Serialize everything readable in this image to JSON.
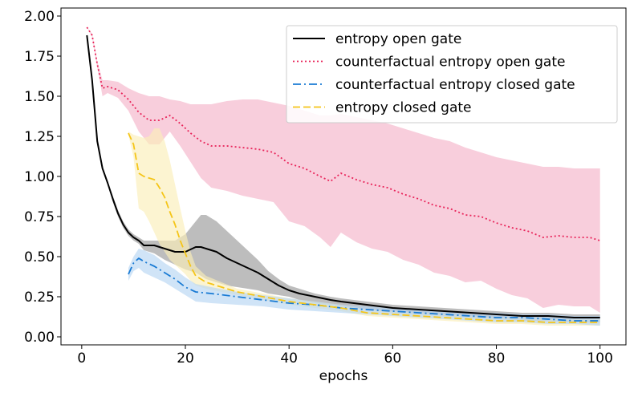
{
  "chart_data": {
    "type": "line",
    "title": "",
    "xlabel": "epochs",
    "ylabel": "",
    "xlim": [
      -4,
      105
    ],
    "ylim": [
      -0.05,
      2.05
    ],
    "xticks": [
      0,
      20,
      40,
      60,
      80,
      100
    ],
    "xtick_labels": [
      "0",
      "20",
      "40",
      "60",
      "80",
      "100"
    ],
    "yticks": [
      0.0,
      0.25,
      0.5,
      0.75,
      1.0,
      1.25,
      1.5,
      1.75,
      2.0
    ],
    "ytick_labels": [
      "0.00",
      "0.25",
      "0.50",
      "0.75",
      "1.00",
      "1.25",
      "1.50",
      "1.75",
      "2.00"
    ],
    "grid": false,
    "legend_position": "top-right",
    "series": [
      {
        "name": "entropy open gate",
        "color": "#000000",
        "style": "solid",
        "band_color": "#999999",
        "x": [
          1,
          2,
          3,
          4,
          5,
          6,
          7,
          8,
          9,
          10,
          11,
          12,
          14,
          16,
          18,
          20,
          22,
          23,
          24,
          26,
          28,
          30,
          32,
          34,
          36,
          38,
          40,
          42,
          45,
          48,
          50,
          55,
          60,
          65,
          70,
          75,
          80,
          85,
          90,
          95,
          100
        ],
        "values": [
          1.88,
          1.6,
          1.22,
          1.05,
          0.96,
          0.86,
          0.77,
          0.7,
          0.65,
          0.62,
          0.6,
          0.57,
          0.57,
          0.55,
          0.53,
          0.53,
          0.56,
          0.56,
          0.55,
          0.53,
          0.49,
          0.46,
          0.43,
          0.4,
          0.36,
          0.32,
          0.29,
          0.27,
          0.25,
          0.23,
          0.22,
          0.2,
          0.18,
          0.17,
          0.16,
          0.15,
          0.14,
          0.13,
          0.13,
          0.12,
          0.12
        ],
        "upper": [
          1.88,
          1.6,
          1.23,
          1.06,
          0.97,
          0.88,
          0.79,
          0.72,
          0.67,
          0.64,
          0.62,
          0.6,
          0.6,
          0.6,
          0.6,
          0.64,
          0.72,
          0.76,
          0.76,
          0.72,
          0.66,
          0.6,
          0.54,
          0.48,
          0.41,
          0.36,
          0.32,
          0.3,
          0.27,
          0.25,
          0.24,
          0.22,
          0.2,
          0.19,
          0.18,
          0.17,
          0.16,
          0.15,
          0.15,
          0.14,
          0.14
        ],
        "lower": [
          1.88,
          1.6,
          1.21,
          1.04,
          0.95,
          0.84,
          0.75,
          0.68,
          0.63,
          0.6,
          0.58,
          0.54,
          0.52,
          0.48,
          0.45,
          0.42,
          0.4,
          0.38,
          0.36,
          0.34,
          0.32,
          0.31,
          0.3,
          0.29,
          0.27,
          0.26,
          0.25,
          0.23,
          0.21,
          0.2,
          0.19,
          0.17,
          0.15,
          0.14,
          0.13,
          0.12,
          0.11,
          0.1,
          0.1,
          0.09,
          0.09
        ]
      },
      {
        "name": "counterfactual entropy open gate",
        "color": "#e8245a",
        "style": "dotted",
        "band_color": "#f4b3c9",
        "x": [
          1,
          2,
          3,
          4,
          5,
          7,
          9,
          11,
          13,
          15,
          17,
          19,
          21,
          23,
          25,
          28,
          31,
          34,
          37,
          40,
          43,
          46,
          48,
          50,
          53,
          56,
          59,
          62,
          65,
          68,
          71,
          74,
          77,
          80,
          83,
          86,
          89,
          92,
          95,
          98,
          100
        ],
        "values": [
          1.93,
          1.88,
          1.7,
          1.55,
          1.56,
          1.54,
          1.48,
          1.4,
          1.35,
          1.35,
          1.38,
          1.33,
          1.27,
          1.22,
          1.19,
          1.19,
          1.18,
          1.17,
          1.15,
          1.08,
          1.05,
          1.0,
          0.97,
          1.02,
          0.98,
          0.95,
          0.93,
          0.89,
          0.86,
          0.82,
          0.8,
          0.76,
          0.75,
          0.71,
          0.68,
          0.66,
          0.62,
          0.63,
          0.62,
          0.62,
          0.6
        ],
        "upper": [
          1.93,
          1.89,
          1.72,
          1.6,
          1.6,
          1.59,
          1.55,
          1.52,
          1.5,
          1.5,
          1.48,
          1.47,
          1.45,
          1.45,
          1.45,
          1.47,
          1.48,
          1.48,
          1.46,
          1.44,
          1.41,
          1.38,
          1.38,
          1.39,
          1.37,
          1.35,
          1.33,
          1.3,
          1.27,
          1.24,
          1.22,
          1.18,
          1.15,
          1.12,
          1.1,
          1.08,
          1.06,
          1.06,
          1.05,
          1.05,
          1.05
        ],
        "lower": [
          1.93,
          1.87,
          1.68,
          1.5,
          1.52,
          1.49,
          1.41,
          1.28,
          1.2,
          1.2,
          1.28,
          1.19,
          1.09,
          0.99,
          0.93,
          0.91,
          0.88,
          0.86,
          0.84,
          0.72,
          0.69,
          0.62,
          0.56,
          0.65,
          0.59,
          0.55,
          0.53,
          0.48,
          0.45,
          0.4,
          0.38,
          0.34,
          0.35,
          0.3,
          0.26,
          0.24,
          0.18,
          0.2,
          0.19,
          0.19,
          0.15
        ]
      },
      {
        "name": "counterfactual entropy closed gate",
        "color": "#1a7bd4",
        "style": "dashdot",
        "band_color": "#b7d6f2",
        "x": [
          9,
          10,
          11,
          12,
          14,
          16,
          18,
          20,
          22,
          25,
          30,
          35,
          40,
          45,
          50,
          55,
          60,
          65,
          70,
          75,
          80,
          85,
          90,
          95,
          100
        ],
        "values": [
          0.39,
          0.46,
          0.49,
          0.47,
          0.44,
          0.4,
          0.36,
          0.31,
          0.28,
          0.27,
          0.25,
          0.23,
          0.21,
          0.2,
          0.18,
          0.17,
          0.16,
          0.15,
          0.14,
          0.13,
          0.12,
          0.12,
          0.11,
          0.1,
          0.1
        ],
        "upper": [
          0.43,
          0.5,
          0.55,
          0.54,
          0.51,
          0.46,
          0.42,
          0.37,
          0.33,
          0.31,
          0.28,
          0.26,
          0.24,
          0.22,
          0.2,
          0.19,
          0.18,
          0.17,
          0.16,
          0.15,
          0.15,
          0.14,
          0.14,
          0.13,
          0.13
        ],
        "lower": [
          0.35,
          0.41,
          0.43,
          0.4,
          0.37,
          0.34,
          0.3,
          0.26,
          0.22,
          0.21,
          0.2,
          0.19,
          0.17,
          0.16,
          0.15,
          0.14,
          0.13,
          0.12,
          0.11,
          0.1,
          0.09,
          0.09,
          0.08,
          0.08,
          0.07
        ]
      },
      {
        "name": "entropy closed gate",
        "color": "#f5c518",
        "style": "dashed",
        "band_color": "#faeeb8",
        "x": [
          9,
          10,
          11,
          12,
          13,
          14,
          15,
          16,
          17,
          18,
          19,
          20,
          21,
          22,
          24,
          27,
          30,
          35,
          40,
          45,
          50,
          55,
          60,
          65,
          70,
          75,
          80,
          85,
          90,
          95,
          100
        ],
        "values": [
          1.27,
          1.2,
          1.02,
          1.0,
          0.99,
          0.98,
          0.93,
          0.87,
          0.78,
          0.7,
          0.6,
          0.52,
          0.44,
          0.38,
          0.34,
          0.31,
          0.28,
          0.25,
          0.22,
          0.2,
          0.18,
          0.15,
          0.14,
          0.13,
          0.12,
          0.11,
          0.1,
          0.1,
          0.09,
          0.09,
          0.09
        ],
        "upper": [
          1.28,
          1.26,
          1.25,
          1.24,
          1.25,
          1.3,
          1.3,
          1.22,
          1.1,
          0.95,
          0.8,
          0.66,
          0.53,
          0.44,
          0.38,
          0.34,
          0.3,
          0.27,
          0.24,
          0.22,
          0.2,
          0.17,
          0.16,
          0.15,
          0.14,
          0.13,
          0.12,
          0.12,
          0.11,
          0.11,
          0.11
        ],
        "lower": [
          1.26,
          1.12,
          0.8,
          0.78,
          0.72,
          0.65,
          0.58,
          0.53,
          0.48,
          0.45,
          0.42,
          0.39,
          0.35,
          0.32,
          0.3,
          0.28,
          0.26,
          0.23,
          0.2,
          0.18,
          0.16,
          0.13,
          0.12,
          0.11,
          0.1,
          0.09,
          0.08,
          0.08,
          0.07,
          0.07,
          0.07
        ]
      }
    ]
  }
}
